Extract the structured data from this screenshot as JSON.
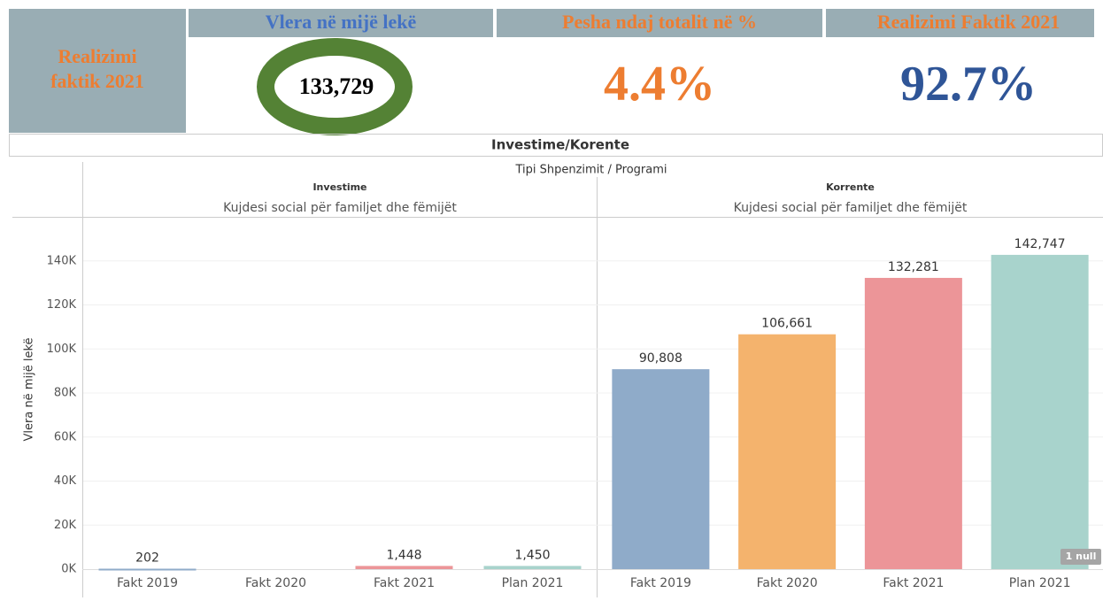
{
  "header": {
    "label": "Realizimi faktik 2021",
    "kpis": [
      {
        "title": "Vlera në mijë lekë",
        "value": "133,729"
      },
      {
        "title": "Pesha ndaj totalit në %",
        "value": "4.4%"
      },
      {
        "title": "Realizimi Faktik 2021",
        "value": "92.7%"
      }
    ]
  },
  "chart_data": {
    "type": "bar",
    "title": "Investime/Korente",
    "subtitle": "Tipi Shpenzimit / Programi",
    "ylabel": "Vlera në mijë lekë",
    "ylim": [
      0,
      160000
    ],
    "yticks": [
      {
        "value": 0,
        "label": "0K"
      },
      {
        "value": 20000,
        "label": "20K"
      },
      {
        "value": 40000,
        "label": "40K"
      },
      {
        "value": 60000,
        "label": "60K"
      },
      {
        "value": 80000,
        "label": "80K"
      },
      {
        "value": 100000,
        "label": "100K"
      },
      {
        "value": 120000,
        "label": "120K"
      },
      {
        "value": 140000,
        "label": "140K"
      }
    ],
    "grid": true,
    "colors": [
      "#8fabc9",
      "#f4b36d",
      "#ec9598",
      "#a8d3cc"
    ],
    "null_note": "1 null",
    "panels": [
      {
        "name": "Investime",
        "program": "Kujdesi social për familjet dhe fëmijët",
        "categories": [
          "Fakt 2019",
          "Fakt 2020",
          "Fakt 2021",
          "Plan 2021"
        ],
        "values": [
          202,
          null,
          1448,
          1450
        ],
        "value_labels": [
          "202",
          null,
          "1,448",
          "1,450"
        ]
      },
      {
        "name": "Korrente",
        "program": "Kujdesi social për familjet dhe fëmijët",
        "categories": [
          "Fakt 2019",
          "Fakt 2020",
          "Fakt 2021",
          "Plan 2021"
        ],
        "values": [
          90808,
          106661,
          132281,
          142747
        ],
        "value_labels": [
          "90,808",
          "106,661",
          "132,281",
          "142,747"
        ]
      }
    ]
  }
}
